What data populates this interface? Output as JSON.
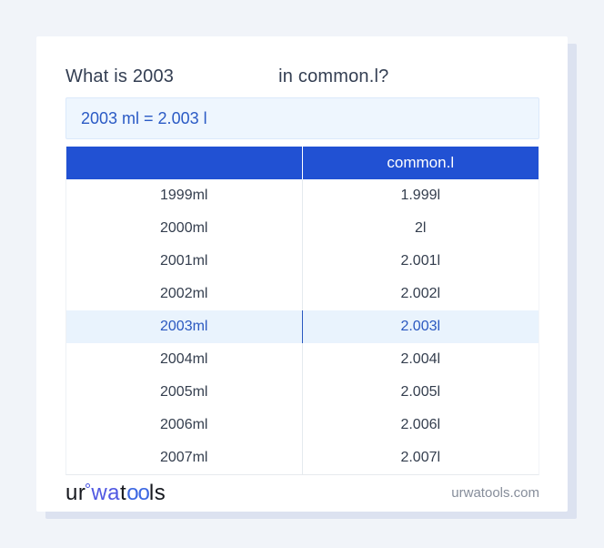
{
  "title": {
    "prefix": "What is 2003",
    "suffix": "in common.l?"
  },
  "answer": {
    "text": "2003 ml = 2.003 l"
  },
  "table": {
    "columns": [
      "",
      "common.l"
    ],
    "rows": [
      {
        "ml": "1999ml",
        "l": "1.999l"
      },
      {
        "ml": "2000ml",
        "l": "2l"
      },
      {
        "ml": "2001ml",
        "l": "2.001l"
      },
      {
        "ml": "2002ml",
        "l": "2.002l"
      },
      {
        "ml": "2003ml",
        "l": "2.003l"
      },
      {
        "ml": "2004ml",
        "l": "2.004l"
      },
      {
        "ml": "2005ml",
        "l": "2.005l"
      },
      {
        "ml": "2006ml",
        "l": "2.006l"
      },
      {
        "ml": "2007ml",
        "l": "2.007l"
      }
    ],
    "highlighted_row_index": 4
  },
  "footer": {
    "logo": {
      "part1": "ur",
      "part2": "wa",
      "part3": "t",
      "part4": "oo",
      "part5": "ls"
    },
    "domain": "urwatools.com"
  },
  "colors": {
    "page_background": "#f1f4f9",
    "card_shadow": "#dce2f0",
    "header_background": "#2151d3",
    "highlight_background": "#e9f3fd",
    "highlight_text": "#2a58c0",
    "answer_background": "#eef6fe",
    "answer_text": "#2a5ac5",
    "logo_blue_wa": "#5058e2",
    "logo_blue_oo": "#3c68e2"
  }
}
